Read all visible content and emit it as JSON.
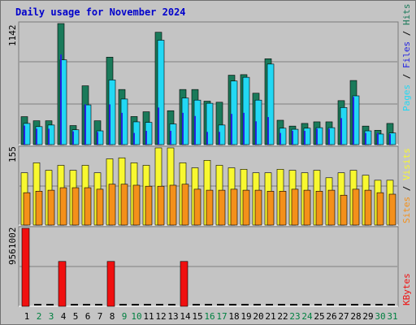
{
  "title": "Daily usage for November 2024",
  "colors": {
    "hits": "#1a7a5a",
    "files": "#2424e0",
    "pages": "#22d8f4",
    "visits": "#f8f830",
    "sites": "#f4901a",
    "kbytes": "#f01010",
    "weekend_label": "#008040",
    "weekday_label": "#000000"
  },
  "chart_data": [
    {
      "type": "bar",
      "panel": "top",
      "ymax_label": "1142",
      "legend": [
        "Pages",
        "Files",
        "Hits"
      ],
      "categories": [
        "1",
        "2",
        "3",
        "4",
        "5",
        "6",
        "7",
        "8",
        "9",
        "10",
        "11",
        "12",
        "13",
        "14",
        "15",
        "16",
        "17",
        "18",
        "19",
        "20",
        "21",
        "22",
        "23",
        "24",
        "25",
        "26",
        "27",
        "28",
        "29",
        "30",
        "31"
      ],
      "weekend_days": [
        "2",
        "3",
        "9",
        "10",
        "16",
        "17",
        "23",
        "24",
        "30",
        "31"
      ],
      "ylim": [
        0,
        1142
      ],
      "series": [
        {
          "name": "Hits",
          "values": [
            264,
            225,
            225,
            1142,
            180,
            555,
            225,
            825,
            520,
            265,
            310,
            1060,
            320,
            520,
            520,
            410,
            400,
            655,
            660,
            485,
            810,
            230,
            175,
            200,
            215,
            215,
            415,
            605,
            175,
            135,
            200
          ]
        },
        {
          "name": "Files",
          "values": [
            180,
            150,
            150,
            850,
            125,
            380,
            120,
            380,
            300,
            110,
            130,
            350,
            130,
            300,
            270,
            120,
            120,
            290,
            300,
            220,
            260,
            110,
            130,
            130,
            150,
            150,
            250,
            450,
            110,
            110,
            100
          ]
        },
        {
          "name": "Pages",
          "values": [
            200,
            170,
            185,
            800,
            140,
            375,
            130,
            610,
            430,
            215,
            210,
            985,
            195,
            440,
            420,
            390,
            185,
            600,
            635,
            420,
            760,
            155,
            145,
            155,
            160,
            160,
            350,
            460,
            130,
            100,
            110
          ]
        }
      ]
    },
    {
      "type": "bar",
      "panel": "middle",
      "ymax_label": "155",
      "legend": [
        "Sites",
        "Visits"
      ],
      "categories": [
        "1",
        "2",
        "3",
        "4",
        "5",
        "6",
        "7",
        "8",
        "9",
        "10",
        "11",
        "12",
        "13",
        "14",
        "15",
        "16",
        "17",
        "18",
        "19",
        "20",
        "21",
        "22",
        "23",
        "24",
        "25",
        "26",
        "27",
        "28",
        "29",
        "30",
        "31"
      ],
      "ylim": [
        0,
        155
      ],
      "series": [
        {
          "name": "Visits",
          "values": [
            105,
            125,
            110,
            120,
            110,
            120,
            105,
            133,
            135,
            125,
            120,
            155,
            155,
            125,
            115,
            130,
            120,
            115,
            112,
            105,
            105,
            112,
            110,
            105,
            110,
            95,
            105,
            110,
            100,
            90,
            90
          ]
        },
        {
          "name": "Sites",
          "values": [
            65,
            68,
            70,
            75,
            75,
            75,
            72,
            82,
            82,
            80,
            78,
            78,
            80,
            82,
            72,
            70,
            70,
            72,
            70,
            70,
            68,
            68,
            72,
            70,
            68,
            70,
            60,
            72,
            70,
            65,
            62
          ]
        }
      ]
    },
    {
      "type": "bar",
      "panel": "bottom",
      "ymax_label": "9561002",
      "legend": [
        "KBytes"
      ],
      "categories": [
        "1",
        "2",
        "3",
        "4",
        "5",
        "6",
        "7",
        "8",
        "9",
        "10",
        "11",
        "12",
        "13",
        "14",
        "15",
        "16",
        "17",
        "18",
        "19",
        "20",
        "21",
        "22",
        "23",
        "24",
        "25",
        "26",
        "27",
        "28",
        "29",
        "30",
        "31"
      ],
      "ylim": [
        0,
        9561002
      ],
      "series": [
        {
          "name": "KBytes",
          "values": [
            9561002,
            0,
            0,
            5500000,
            0,
            0,
            0,
            5500000,
            0,
            0,
            0,
            0,
            0,
            5500000,
            0,
            0,
            0,
            0,
            0,
            0,
            0,
            0,
            0,
            0,
            0,
            0,
            0,
            0,
            0,
            0,
            0
          ]
        }
      ]
    }
  ]
}
